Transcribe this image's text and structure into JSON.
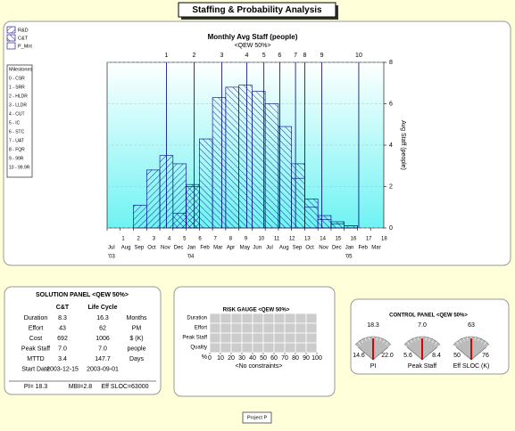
{
  "title": "Staffing & Probability Analysis",
  "chart_data": {
    "type": "bar",
    "title": "Monthly Avg Staff (people)",
    "subtitle": "<QEW 50%>",
    "y_label": "Avg Staff (people)",
    "categories": [
      "Jul",
      "Aug",
      "Sep",
      "Oct",
      "Nov",
      "Dec",
      "Jan",
      "Feb",
      "Mar",
      "Apr",
      "May",
      "Jun",
      "Jul",
      "Aug",
      "Sep",
      "Oct",
      "Nov",
      "Dec",
      "Jan",
      "Feb",
      "Mar"
    ],
    "year_ticks": [
      {
        "value": 0,
        "label": "'03"
      },
      {
        "value": 6,
        "label": "'04"
      },
      {
        "value": 18,
        "label": "'05"
      }
    ],
    "month_numbers": [
      1,
      2,
      3,
      4,
      5,
      6,
      7,
      8,
      9,
      10,
      11,
      12,
      13,
      14,
      15,
      16,
      17,
      18
    ],
    "series": [
      {
        "name": "R&D",
        "color": "#000080",
        "hatch": "forward",
        "values": [
          0,
          0,
          1.1,
          2.8,
          3.5,
          3.1,
          2.0,
          0,
          0,
          0,
          0,
          0,
          0,
          0,
          0,
          0,
          0,
          0,
          0,
          0,
          0
        ]
      },
      {
        "name": "C&T",
        "color": "#000080",
        "hatch": "back",
        "values": [
          0,
          0,
          0,
          0,
          0,
          0.7,
          2.1,
          4.3,
          6.3,
          6.8,
          6.9,
          6.6,
          6.0,
          4.9,
          3.1,
          1.4,
          0.6,
          0.3,
          0.1,
          0,
          0
        ]
      },
      {
        "name": "P_Mnt",
        "color": "#000080",
        "hatch": "none",
        "values": [
          0,
          0,
          0,
          0,
          0,
          0,
          0,
          0,
          0,
          0,
          0,
          0,
          0,
          0,
          2.4,
          1.0,
          0.4,
          0.2,
          0.1,
          0,
          0
        ]
      }
    ],
    "milestones": [
      {
        "label": "1",
        "x": 4.5
      },
      {
        "label": "2",
        "x": 6.6
      },
      {
        "label": "3",
        "x": 8.7
      },
      {
        "label": "4",
        "x": 10.6
      },
      {
        "label": "5",
        "x": 11.9
      },
      {
        "label": "6",
        "x": 13.1
      },
      {
        "label": "7",
        "x": 14.3
      },
      {
        "label": "8",
        "x": 15.0
      },
      {
        "label": "9",
        "x": 16.3
      },
      {
        "label": "10",
        "x": 19.1
      }
    ],
    "ylim": [
      0,
      8
    ],
    "yticks": [
      0,
      2,
      4,
      6,
      8
    ],
    "grid": true
  },
  "milestones_legend": {
    "title": "Milestones",
    "items": [
      "0 - CSR",
      "1 - SRR",
      "2 - HLDR",
      "3 - LLDR",
      "4 - CUT",
      "5 - IC",
      "6 - STC",
      "7 - UAT",
      "8 - FQR",
      "9 - 99R",
      "10 - 99.9R"
    ]
  },
  "solution_panel": {
    "title": "SOLUTION PANEL  <QEW 50%>",
    "columns": [
      "C&T",
      "Life Cycle"
    ],
    "rows": [
      [
        "Duration",
        "8.3",
        "16.3",
        "Months"
      ],
      [
        "Effort",
        "43",
        "62",
        "PM"
      ],
      [
        "Cost",
        "692",
        "1006",
        "$ (K)"
      ],
      [
        "Peak Staff",
        "7.0",
        "7.0",
        "people"
      ],
      [
        "MTTD",
        "3.4",
        "147.7",
        "Days"
      ],
      [
        "Start Date",
        "2003-12-15",
        "2003-09-01"
      ]
    ],
    "footer": [
      "PI= 18.3",
      "MBI=2.8",
      "Eff SLOC=63000"
    ]
  },
  "risk_gauge": {
    "title": "RISK GAUGE <QEW 50%>",
    "rows": [
      "Duration",
      "Effort",
      "Peak Staff",
      "Quality"
    ],
    "axis_label": "%",
    "ticks": [
      0,
      10,
      20,
      30,
      40,
      50,
      60,
      70,
      80,
      90,
      100
    ],
    "note": "<No constraints>"
  },
  "control_panel": {
    "title": "CONTROL PANEL  <QEW 50%>",
    "gauges": [
      {
        "name": "PI",
        "value": 18.3,
        "min": 14.6,
        "max": {
          "value": 22,
          "label": "22.0"
        }
      },
      {
        "name": "Peak Staff",
        "value": {
          "value": 7,
          "label": "7.0"
        },
        "min": 5.6,
        "max": 8.4
      },
      {
        "name": "Eff SLOC (K)",
        "value": 63,
        "min": 50,
        "max": 76
      }
    ]
  },
  "footer_button": "Project P"
}
